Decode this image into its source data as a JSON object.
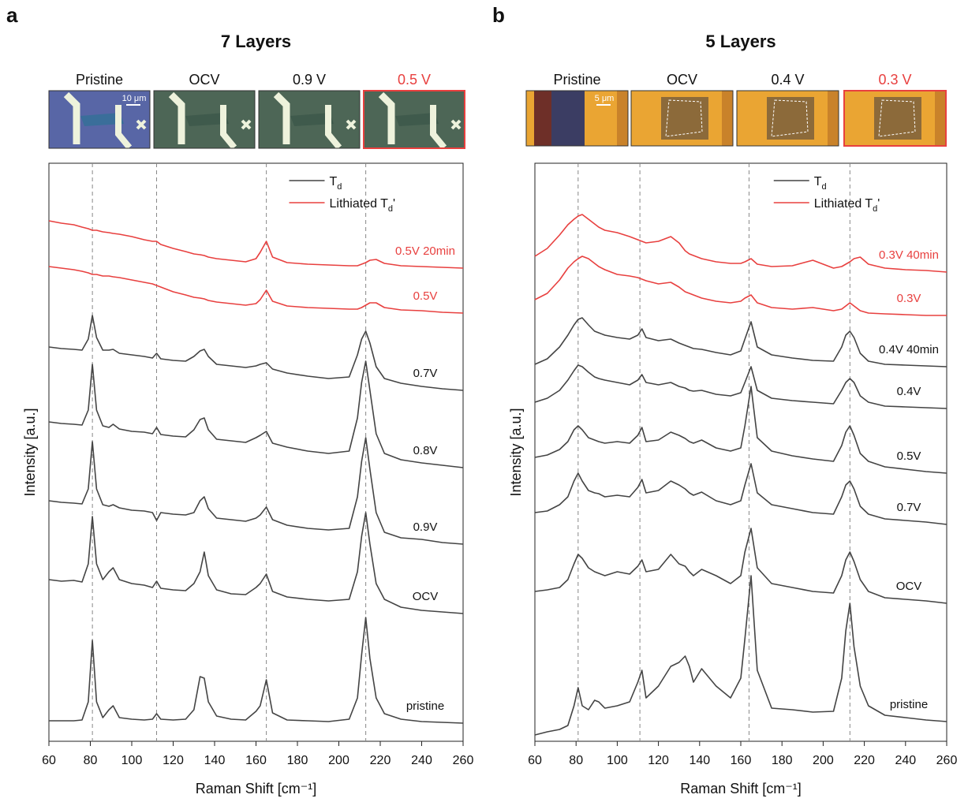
{
  "chart_data": [
    {
      "type": "line",
      "panel_label": "a",
      "title": "7 Layers",
      "images": [
        {
          "label": "Pristine"
        },
        {
          "label": "OCV"
        },
        {
          "label": "0.9 V"
        },
        {
          "label": "0.5 V",
          "color": "#e8403f"
        }
      ],
      "scale_bar": "10 μm",
      "xlabel": "Raman Shift [cm⁻¹]",
      "ylabel": "Intensity [a.u.]",
      "xlim": [
        60,
        260
      ],
      "xticks": [
        60,
        80,
        100,
        120,
        140,
        160,
        180,
        200,
        220,
        240,
        260
      ],
      "ylim": [
        0,
        733
      ],
      "reference_lines": [
        81,
        112,
        165,
        213
      ],
      "legend": [
        {
          "name": "T",
          "subscript": "d",
          "color": "#444444"
        },
        {
          "name": "Lithiated T",
          "subscript": "d",
          "suffix": "'",
          "color": "#e8403f"
        }
      ],
      "x": [
        60,
        66,
        72,
        76,
        79,
        81,
        83,
        86,
        89,
        91,
        94,
        100,
        106,
        110,
        112,
        114,
        120,
        126,
        130,
        133,
        135,
        137,
        141,
        148,
        155,
        160,
        162,
        165,
        168,
        175,
        185,
        195,
        205,
        209,
        211,
        213,
        215,
        218,
        222,
        230,
        240,
        250,
        260
      ],
      "series": [
        {
          "name": "0.5V 20min",
          "color": "#e8403f",
          "values": [
            660,
            657,
            655,
            652,
            650,
            648,
            648,
            646,
            645,
            644,
            643,
            640,
            636,
            634,
            634,
            630,
            625,
            621,
            618,
            617,
            616,
            614,
            612,
            610,
            608,
            612,
            620,
            634,
            614,
            607,
            605,
            604,
            603,
            603,
            605,
            607,
            610,
            611,
            606,
            603,
            602,
            601,
            600
          ]
        },
        {
          "name": "0.5V",
          "color": "#e8403f",
          "values": [
            602,
            600,
            598,
            596,
            594,
            592,
            592,
            590,
            590,
            589,
            588,
            585,
            582,
            580,
            578,
            576,
            570,
            566,
            563,
            562,
            561,
            559,
            557,
            555,
            553,
            555,
            560,
            572,
            558,
            552,
            550,
            549,
            548,
            548,
            550,
            553,
            556,
            556,
            550,
            547,
            546,
            544,
            543
          ]
        },
        {
          "name": "0.7V",
          "color": "#444444",
          "values": [
            500,
            498,
            497,
            496,
            510,
            540,
            512,
            496,
            496,
            497,
            492,
            490,
            488,
            486,
            492,
            485,
            483,
            482,
            488,
            495,
            497,
            488,
            478,
            476,
            474,
            476,
            478,
            480,
            472,
            467,
            463,
            460,
            462,
            490,
            510,
            520,
            505,
            475,
            460,
            454,
            450,
            447,
            445
          ]
        },
        {
          "name": "0.8V",
          "color": "#444444",
          "values": [
            405,
            403,
            402,
            401,
            420,
            478,
            420,
            400,
            398,
            402,
            396,
            393,
            392,
            390,
            398,
            389,
            387,
            386,
            395,
            408,
            410,
            395,
            383,
            381,
            379,
            385,
            388,
            393,
            378,
            373,
            368,
            365,
            368,
            410,
            455,
            482,
            445,
            390,
            365,
            357,
            353,
            350,
            347
          ]
        },
        {
          "name": "0.9V",
          "color": "#444444",
          "values": [
            305,
            303,
            302,
            301,
            320,
            380,
            320,
            300,
            298,
            300,
            296,
            293,
            292,
            290,
            280,
            290,
            288,
            287,
            290,
            305,
            310,
            295,
            283,
            281,
            279,
            283,
            287,
            297,
            281,
            274,
            270,
            268,
            270,
            310,
            355,
            385,
            345,
            290,
            265,
            258,
            256,
            252,
            250
          ]
        },
        {
          "name": "OCV",
          "color": "#444444",
          "values": [
            205,
            203,
            204,
            202,
            225,
            285,
            225,
            205,
            215,
            220,
            205,
            200,
            198,
            195,
            203,
            194,
            192,
            191,
            200,
            215,
            240,
            210,
            192,
            187,
            186,
            195,
            200,
            212,
            190,
            183,
            180,
            178,
            180,
            215,
            260,
            290,
            250,
            200,
            180,
            170,
            166,
            164,
            162
          ]
        },
        {
          "name": "pristine",
          "color": "#444444",
          "values": [
            26,
            26,
            26,
            27,
            50,
            128,
            50,
            30,
            40,
            45,
            30,
            28,
            27,
            28,
            35,
            28,
            27,
            28,
            40,
            82,
            80,
            50,
            32,
            28,
            27,
            38,
            45,
            78,
            36,
            27,
            26,
            25,
            28,
            55,
            110,
            157,
            105,
            55,
            35,
            28,
            25,
            24,
            23
          ]
        }
      ]
    },
    {
      "type": "line",
      "panel_label": "b",
      "title": "5 Layers",
      "images": [
        {
          "label": "Pristine"
        },
        {
          "label": "OCV"
        },
        {
          "label": "0.4 V"
        },
        {
          "label": "0.3 V",
          "color": "#e8403f"
        }
      ],
      "scale_bar": "5 μm",
      "xlabel": "Raman Shift [cm⁻¹]",
      "ylabel": "Intensity [a.u.]",
      "xlim": [
        60,
        260
      ],
      "xticks": [
        60,
        80,
        100,
        120,
        140,
        160,
        180,
        200,
        220,
        240,
        260
      ],
      "ylim": [
        0,
        733
      ],
      "reference_lines": [
        81,
        111,
        164,
        213
      ],
      "legend": [
        {
          "name": "T",
          "subscript": "d",
          "color": "#444444"
        },
        {
          "name": "Lithiated T",
          "subscript": "d",
          "suffix": "'",
          "color": "#e8403f"
        }
      ],
      "x": [
        60,
        66,
        72,
        76,
        79,
        81,
        83,
        86,
        89,
        91,
        94,
        100,
        106,
        110,
        112,
        114,
        120,
        126,
        130,
        133,
        135,
        137,
        141,
        148,
        155,
        160,
        162,
        165,
        168,
        175,
        185,
        195,
        205,
        209,
        211,
        213,
        215,
        218,
        222,
        230,
        240,
        250,
        260
      ],
      "series": [
        {
          "name": "0.3V 40min",
          "color": "#e8403f",
          "values": [
            615,
            625,
            642,
            655,
            662,
            666,
            668,
            662,
            656,
            652,
            648,
            645,
            640,
            636,
            634,
            632,
            634,
            640,
            632,
            622,
            618,
            616,
            612,
            608,
            606,
            606,
            608,
            612,
            605,
            602,
            603,
            610,
            600,
            602,
            605,
            608,
            612,
            614,
            605,
            600,
            598,
            597,
            595
          ]
        },
        {
          "name": "0.3V",
          "color": "#e8403f",
          "values": [
            560,
            568,
            585,
            600,
            608,
            612,
            615,
            612,
            606,
            602,
            598,
            592,
            590,
            588,
            586,
            584,
            580,
            582,
            576,
            570,
            568,
            566,
            562,
            558,
            556,
            558,
            562,
            566,
            556,
            550,
            548,
            550,
            546,
            548,
            552,
            556,
            552,
            546,
            543,
            542,
            541,
            540,
            540
          ]
        },
        {
          "name": "0.4V 40min",
          "color": "#444444",
          "values": [
            478,
            485,
            500,
            515,
            528,
            535,
            537,
            528,
            520,
            518,
            515,
            512,
            510,
            515,
            523,
            512,
            508,
            510,
            505,
            502,
            500,
            498,
            497,
            493,
            490,
            495,
            510,
            532,
            500,
            490,
            486,
            483,
            482,
            500,
            515,
            520,
            512,
            492,
            482,
            478,
            477,
            476,
            475
          ]
        },
        {
          "name": "0.4V",
          "color": "#444444",
          "values": [
            430,
            435,
            445,
            458,
            470,
            477,
            475,
            468,
            462,
            460,
            458,
            455,
            452,
            458,
            465,
            455,
            452,
            455,
            450,
            448,
            445,
            444,
            445,
            440,
            438,
            442,
            455,
            475,
            445,
            435,
            432,
            430,
            428,
            445,
            455,
            460,
            455,
            438,
            430,
            425,
            424,
            423,
            422
          ]
        },
        {
          "name": "0.5V",
          "color": "#444444",
          "values": [
            360,
            363,
            370,
            380,
            395,
            400,
            395,
            385,
            382,
            380,
            378,
            380,
            378,
            388,
            398,
            380,
            382,
            392,
            388,
            384,
            380,
            378,
            382,
            372,
            368,
            372,
            400,
            450,
            385,
            368,
            362,
            358,
            355,
            375,
            392,
            400,
            388,
            365,
            355,
            348,
            345,
            342,
            340
          ]
        },
        {
          "name": "0.7V",
          "color": "#444444",
          "values": [
            290,
            292,
            300,
            310,
            330,
            340,
            330,
            318,
            315,
            314,
            310,
            312,
            310,
            322,
            332,
            315,
            318,
            330,
            325,
            320,
            315,
            312,
            316,
            305,
            300,
            305,
            325,
            352,
            315,
            300,
            295,
            290,
            288,
            310,
            325,
            330,
            320,
            298,
            288,
            282,
            280,
            278,
            275
          ]
        },
        {
          "name": "OCV",
          "color": "#444444",
          "values": [
            190,
            192,
            195,
            205,
            225,
            237,
            232,
            220,
            215,
            213,
            210,
            215,
            212,
            222,
            230,
            215,
            218,
            237,
            225,
            222,
            215,
            210,
            218,
            210,
            200,
            210,
            240,
            270,
            220,
            200,
            195,
            190,
            188,
            210,
            230,
            240,
            228,
            205,
            190,
            182,
            180,
            178,
            175
          ]
        },
        {
          "name": "pristine",
          "color": "#444444",
          "values": [
            8,
            12,
            15,
            20,
            45,
            68,
            45,
            40,
            52,
            50,
            42,
            45,
            50,
            75,
            90,
            55,
            70,
            95,
            100,
            108,
            95,
            75,
            92,
            70,
            55,
            80,
            130,
            210,
            90,
            42,
            40,
            37,
            38,
            80,
            140,
            175,
            120,
            70,
            45,
            33,
            30,
            27,
            25
          ]
        }
      ]
    }
  ]
}
